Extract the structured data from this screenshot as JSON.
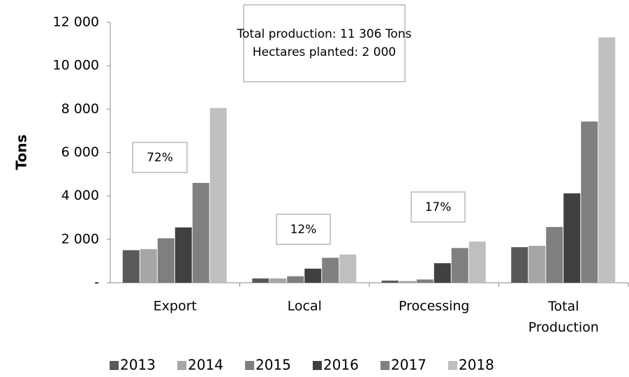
{
  "chart_data": {
    "type": "bar",
    "y_label": "Tons",
    "categories": [
      "Export",
      "Local",
      "Processing",
      "Total Production"
    ],
    "series": [
      {
        "name": "2013",
        "color": "#595959",
        "values": [
          1500,
          200,
          100,
          1640
        ]
      },
      {
        "name": "2014",
        "color": "#a6a6a6",
        "values": [
          1550,
          200,
          80,
          1700
        ]
      },
      {
        "name": "2015",
        "color": "#7f7f7f",
        "values": [
          2050,
          300,
          150,
          2570
        ]
      },
      {
        "name": "2016",
        "color": "#404040",
        "values": [
          2550,
          650,
          900,
          4120
        ]
      },
      {
        "name": "2017",
        "color": "#808080",
        "values": [
          4600,
          1150,
          1600,
          7430
        ]
      },
      {
        "name": "2018",
        "color": "#bfbfbf",
        "values": [
          8050,
          1300,
          1900,
          11306
        ]
      }
    ],
    "ylim": [
      0,
      12000
    ],
    "yticks": [
      {
        "value": 0,
        "label": "-"
      },
      {
        "value": 2000,
        "label": "2 000"
      },
      {
        "value": 4000,
        "label": "4 000"
      },
      {
        "value": 6000,
        "label": "6 000"
      },
      {
        "value": 8000,
        "label": "8 000"
      },
      {
        "value": 10000,
        "label": "10 000"
      },
      {
        "value": 12000,
        "label": "12 000"
      }
    ],
    "annotations": [
      "Total production: 11 306 Tons",
      "Hectares planted: 2 000",
      "72%",
      "12%",
      "17%"
    ],
    "legend": "bottom"
  }
}
